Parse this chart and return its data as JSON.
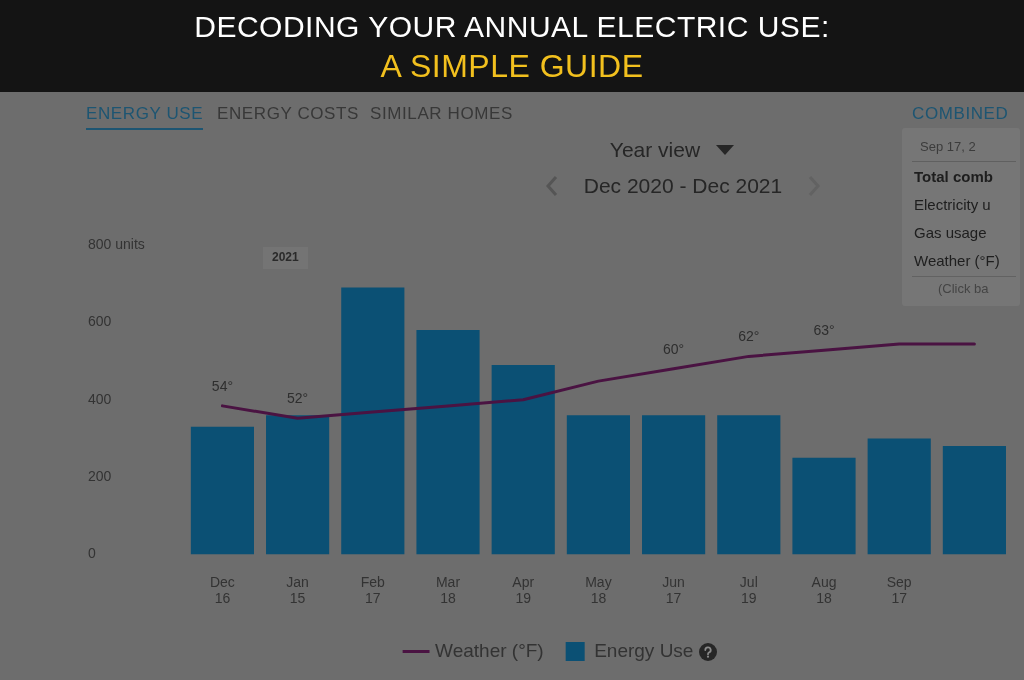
{
  "chart_data": {
    "type": "bar",
    "title": "DECODING YOUR ANNUAL ELECTRIC USE:",
    "subtitle": "A SIMPLE GUIDE",
    "categories": [
      "Dec\n16",
      "Jan\n15",
      "Feb\n17",
      "Mar\n18",
      "Apr\n19",
      "May\n18",
      "Jun\n17",
      "Jul\n19",
      "Aug\n18",
      "Sep\n17",
      null
    ],
    "series": [
      {
        "name": "Weather (°F)",
        "type": "line",
        "axis": "y2",
        "color": "#4a1342",
        "values": [
          54,
          52,
          53,
          54,
          55,
          58,
          60,
          62,
          63,
          64,
          64
        ],
        "value_labels": [
          "54°",
          "52°",
          null,
          null,
          null,
          null,
          "60°",
          "62°",
          "63°",
          null,
          null
        ]
      },
      {
        "name": "Energy Use",
        "color": "#0b5074",
        "values": [
          330,
          360,
          690,
          580,
          490,
          360,
          360,
          360,
          250,
          300,
          280
        ]
      }
    ],
    "ylim": [
      0,
      800
    ],
    "yticks": [
      0,
      200,
      400,
      600,
      {
        "value": 800,
        "label": "800 units"
      }
    ],
    "y2lim": [
      30,
      80
    ],
    "legend": "bottom",
    "annotations": [
      "ENERGY USE",
      "ENERGY COSTS",
      "SIMILAR HOMES",
      "COMBINED",
      "Year view",
      "Dec 2020 - Dec 2021",
      "2021",
      "Sep 17, 2",
      "Total comb",
      "Electricity u",
      "Gas usage",
      "Weather (°F)",
      "(Click ba"
    ]
  }
}
